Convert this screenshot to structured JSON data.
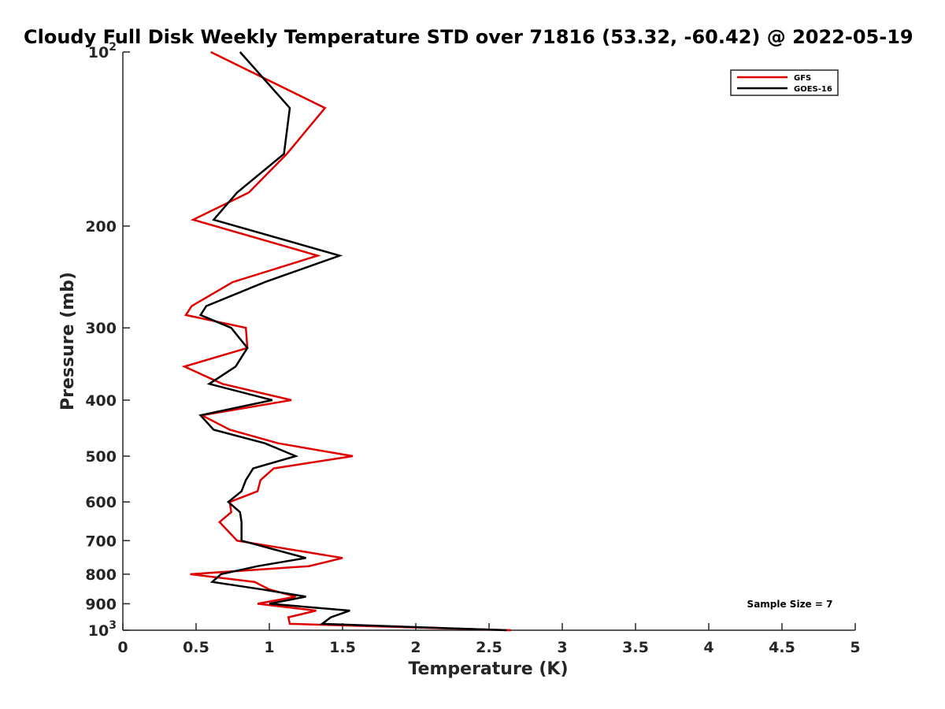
{
  "chart_data": {
    "type": "line",
    "title": "Cloudy Full Disk Weekly Temperature STD over 71816 (53.32, -60.42) @ 2022-05-19",
    "xlabel": "Temperature (K)",
    "ylabel": "Pressure (mb)",
    "xlim": [
      0,
      5
    ],
    "ylim": [
      100,
      1000
    ],
    "y_scale": "log",
    "y_reversed": true,
    "grid": false,
    "legend_position": "top-right",
    "x_ticks": [
      0,
      0.5,
      1,
      1.5,
      2,
      2.5,
      3,
      3.5,
      4,
      4.5,
      5
    ],
    "x_tick_labels": [
      "0",
      "0.5",
      "1",
      "1.5",
      "2",
      "2.5",
      "3",
      "3.5",
      "4",
      "4.5",
      "5"
    ],
    "y_ticks": [
      100,
      200,
      300,
      400,
      500,
      600,
      700,
      800,
      900,
      1000
    ],
    "y_tick_labels": [
      "10^2",
      "200",
      "300",
      "400",
      "500",
      "600",
      "700",
      "800",
      "900",
      "10^3"
    ],
    "series": [
      {
        "name": "GFS",
        "color": "#e00000",
        "pressure": [
          100,
          125,
          150,
          175,
          195,
          225,
          250,
          275,
          285,
          300,
          325,
          350,
          375,
          400,
          425,
          450,
          475,
          500,
          525,
          550,
          575,
          600,
          625,
          650,
          700,
          750,
          775,
          800,
          825,
          850,
          875,
          900,
          925,
          950,
          975,
          1000
        ],
        "values": [
          0.6,
          1.38,
          1.12,
          0.86,
          0.48,
          1.33,
          0.75,
          0.47,
          0.43,
          0.84,
          0.85,
          0.42,
          0.68,
          1.15,
          0.54,
          0.73,
          1.06,
          1.57,
          1.03,
          0.94,
          0.92,
          0.73,
          0.74,
          0.66,
          0.78,
          1.5,
          1.27,
          0.46,
          0.9,
          1.0,
          1.18,
          0.92,
          1.32,
          1.13,
          1.14,
          2.65
        ]
      },
      {
        "name": "GOES-16",
        "color": "#000000",
        "pressure": [
          100,
          125,
          150,
          175,
          195,
          225,
          250,
          275,
          285,
          300,
          325,
          350,
          375,
          400,
          425,
          450,
          475,
          500,
          525,
          550,
          575,
          600,
          625,
          650,
          700,
          750,
          775,
          800,
          825,
          850,
          875,
          900,
          925,
          950,
          975,
          1000
        ],
        "values": [
          0.8,
          1.14,
          1.1,
          0.78,
          0.62,
          1.48,
          0.97,
          0.57,
          0.53,
          0.74,
          0.85,
          0.77,
          0.59,
          1.02,
          0.53,
          0.62,
          0.97,
          1.18,
          0.89,
          0.84,
          0.81,
          0.72,
          0.8,
          0.81,
          0.81,
          1.25,
          0.92,
          0.67,
          0.61,
          0.95,
          1.25,
          1.0,
          1.55,
          1.42,
          1.36,
          2.62
        ]
      }
    ],
    "annotations": [
      "Sample Size = 7"
    ]
  }
}
